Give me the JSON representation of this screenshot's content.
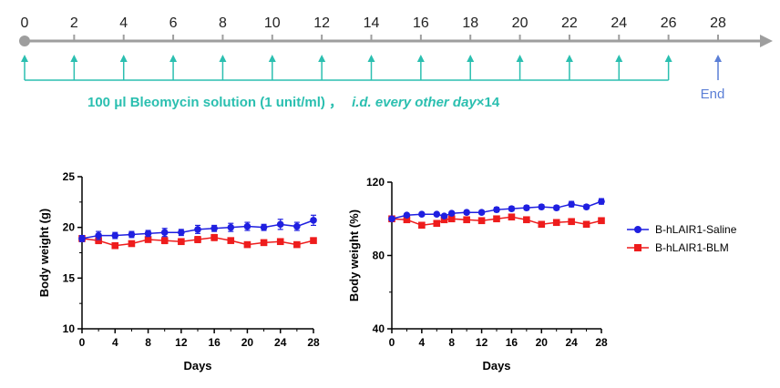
{
  "timeline": {
    "days": [
      0,
      2,
      4,
      6,
      8,
      10,
      12,
      14,
      16,
      18,
      20,
      22,
      24,
      26,
      28
    ],
    "dose_days": [
      0,
      2,
      4,
      6,
      8,
      10,
      12,
      14,
      16,
      18,
      20,
      22,
      24,
      26
    ],
    "end_day": 28,
    "end_label": "End",
    "treatment_text": "100 μl Bleomycin solution (1 unit/ml) ，",
    "treatment_italic": "i.d. every other day",
    "treatment_suffix": "×14",
    "colors": {
      "arrow": "#9e9e9e",
      "dose": "#2bbfb0",
      "end": "#5b7fd6",
      "text": "#2bbfb0"
    }
  },
  "chart_data": [
    {
      "type": "line",
      "ylabel": "Body weight (g)",
      "xlabel": "Days",
      "xlim": [
        0,
        28
      ],
      "ylim": [
        10,
        25
      ],
      "xticks": [
        0,
        4,
        8,
        12,
        16,
        20,
        24,
        28
      ],
      "yticks": [
        10,
        15,
        20,
        25
      ],
      "x": [
        0,
        2,
        4,
        6,
        8,
        10,
        12,
        14,
        16,
        18,
        20,
        22,
        24,
        26,
        28
      ],
      "series": [
        {
          "name": "B-hLAIR1-Saline",
          "color": "#1f1fe0",
          "marker": "circle",
          "values": [
            18.9,
            19.2,
            19.2,
            19.3,
            19.4,
            19.5,
            19.5,
            19.8,
            19.9,
            20.0,
            20.1,
            20.0,
            20.3,
            20.1,
            20.7
          ],
          "errors": [
            0.3,
            0.4,
            0.3,
            0.3,
            0.3,
            0.4,
            0.3,
            0.4,
            0.3,
            0.4,
            0.4,
            0.3,
            0.5,
            0.4,
            0.5
          ]
        },
        {
          "name": "B-hLAIR1-BLM",
          "color": "#ee1c1c",
          "marker": "square",
          "values": [
            18.9,
            18.7,
            18.2,
            18.4,
            18.8,
            18.7,
            18.6,
            18.8,
            19.0,
            18.7,
            18.3,
            18.5,
            18.6,
            18.3,
            18.7
          ],
          "errors": [
            0.3,
            0.3,
            0.2,
            0.2,
            0.2,
            0.3,
            0.2,
            0.3,
            0.3,
            0.2,
            0.2,
            0.2,
            0.2,
            0.2,
            0.2
          ]
        }
      ]
    },
    {
      "type": "line",
      "ylabel": "Body weight (%)",
      "xlabel": "Days",
      "xlim": [
        0,
        28
      ],
      "ylim": [
        40,
        120
      ],
      "xticks": [
        0,
        4,
        8,
        12,
        16,
        20,
        24,
        28
      ],
      "yticks": [
        40,
        80,
        120
      ],
      "x": [
        0,
        2,
        4,
        6,
        7,
        8,
        10,
        12,
        14,
        16,
        18,
        20,
        22,
        24,
        26,
        28
      ],
      "series": [
        {
          "name": "B-hLAIR1-Saline",
          "color": "#1f1fe0",
          "marker": "circle",
          "values": [
            100,
            102,
            102.5,
            102.5,
            101.5,
            103,
            103.5,
            103.5,
            105,
            105.5,
            106,
            106.5,
            106,
            108,
            106.5,
            109.5
          ],
          "errors": [
            0.8,
            0.8,
            0.8,
            0.8,
            0.8,
            0.8,
            1.0,
            1.0,
            1.2,
            1.2,
            1.2,
            1.2,
            1.2,
            1.5,
            1.2,
            1.5
          ]
        },
        {
          "name": "B-hLAIR1-BLM",
          "color": "#ee1c1c",
          "marker": "square",
          "values": [
            100,
            99.5,
            96.5,
            97.5,
            99.5,
            100,
            99.5,
            99,
            100,
            101,
            99.5,
            97,
            98,
            98.5,
            97,
            99
          ],
          "errors": [
            0.8,
            0.8,
            0.8,
            0.8,
            0.8,
            0.8,
            0.8,
            0.8,
            0.8,
            0.8,
            0.8,
            0.8,
            0.8,
            0.8,
            0.8,
            0.8
          ]
        }
      ]
    }
  ],
  "legend": [
    {
      "label": "B-hLAIR1-Saline",
      "color": "#1f1fe0",
      "marker": "circle"
    },
    {
      "label": "B-hLAIR1-BLM",
      "color": "#ee1c1c",
      "marker": "square"
    }
  ]
}
